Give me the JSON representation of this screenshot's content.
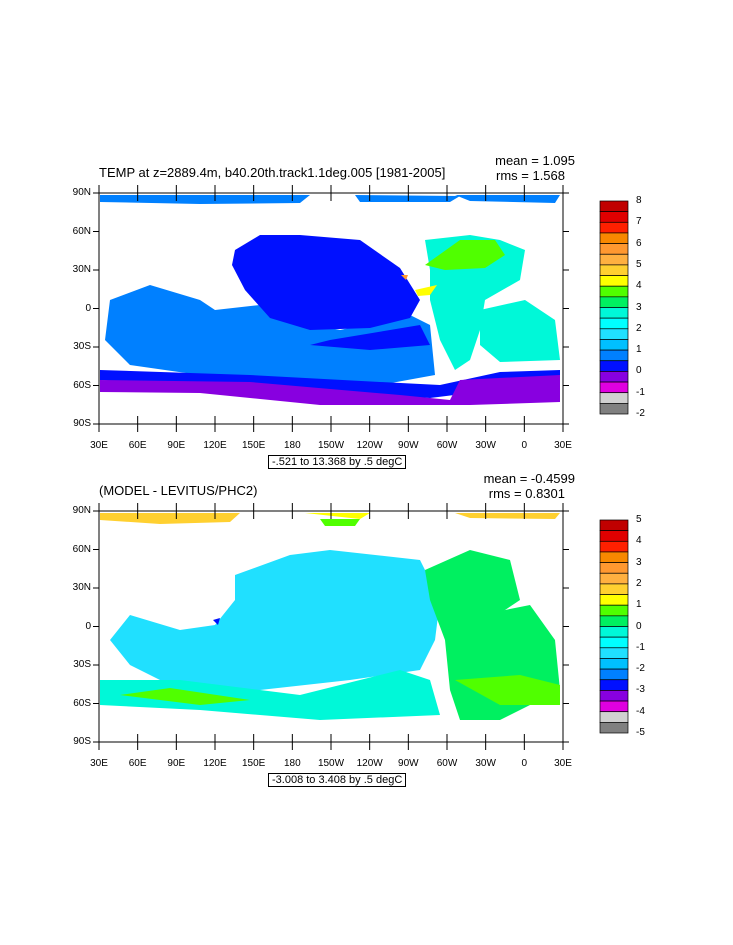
{
  "panels": [
    {
      "title": "TEMP at z=2889.4m, b40.20th.track1.1deg.005 [1981-2005]",
      "mean": "mean = 1.095",
      "rms": "rms = 1.568",
      "info": "-.521 to 13.368 by .5 degC",
      "colorbar_labels": [
        "8",
        "7",
        "6",
        "5",
        "4",
        "3",
        "2",
        "1",
        "0",
        "-1",
        "-2"
      ]
    },
    {
      "title": "(MODEL - LEVITUS/PHC2)",
      "mean": "mean = -0.4599",
      "rms": "rms = 0.8301",
      "info": "-3.008 to 3.408 by .5 degC",
      "colorbar_labels": [
        "5",
        "4",
        "3",
        "2",
        "1",
        "0",
        "-1",
        "-2",
        "-3",
        "-4",
        "-5"
      ]
    }
  ],
  "lat_labels": [
    "90N",
    "60N",
    "30N",
    "0",
    "30S",
    "60S",
    "90S"
  ],
  "lon_labels": [
    "30E",
    "60E",
    "90E",
    "120E",
    "150E",
    "180",
    "150W",
    "120W",
    "90W",
    "60W",
    "30W",
    "0",
    "30E"
  ],
  "colors": [
    "#c00000",
    "#e00000",
    "#ff2000",
    "#f88800",
    "#ff9830",
    "#ffb040",
    "#ffd030",
    "#ffff00",
    "#50ff00",
    "#00f060",
    "#00f8d8",
    "#00ffff",
    "#20e0ff",
    "#00c0ff",
    "#0080ff",
    "#0010ff",
    "#8800e0",
    "#e000e0",
    "#d0d0d0",
    "#808080"
  ]
}
